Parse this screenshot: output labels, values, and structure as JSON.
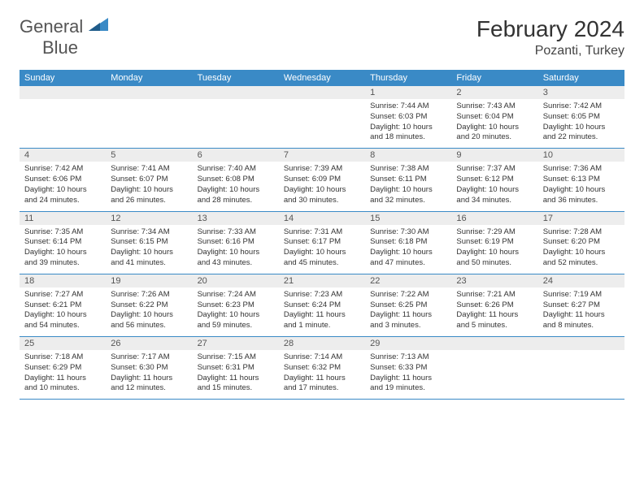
{
  "logo": {
    "word1": "General",
    "word2": "Blue"
  },
  "title": "February 2024",
  "location": "Pozanti, Turkey",
  "colors": {
    "header_bg": "#3a8ac6",
    "header_text": "#ffffff",
    "daynum_bg": "#ededed",
    "border": "#3a8ac6",
    "text": "#333333",
    "logo_gray": "#555555",
    "logo_blue": "#3a8ac6"
  },
  "day_names": [
    "Sunday",
    "Monday",
    "Tuesday",
    "Wednesday",
    "Thursday",
    "Friday",
    "Saturday"
  ],
  "weeks": [
    [
      {
        "num": "",
        "sunrise": "",
        "sunset": "",
        "daylight": ""
      },
      {
        "num": "",
        "sunrise": "",
        "sunset": "",
        "daylight": ""
      },
      {
        "num": "",
        "sunrise": "",
        "sunset": "",
        "daylight": ""
      },
      {
        "num": "",
        "sunrise": "",
        "sunset": "",
        "daylight": ""
      },
      {
        "num": "1",
        "sunrise": "Sunrise: 7:44 AM",
        "sunset": "Sunset: 6:03 PM",
        "daylight": "Daylight: 10 hours and 18 minutes."
      },
      {
        "num": "2",
        "sunrise": "Sunrise: 7:43 AM",
        "sunset": "Sunset: 6:04 PM",
        "daylight": "Daylight: 10 hours and 20 minutes."
      },
      {
        "num": "3",
        "sunrise": "Sunrise: 7:42 AM",
        "sunset": "Sunset: 6:05 PM",
        "daylight": "Daylight: 10 hours and 22 minutes."
      }
    ],
    [
      {
        "num": "4",
        "sunrise": "Sunrise: 7:42 AM",
        "sunset": "Sunset: 6:06 PM",
        "daylight": "Daylight: 10 hours and 24 minutes."
      },
      {
        "num": "5",
        "sunrise": "Sunrise: 7:41 AM",
        "sunset": "Sunset: 6:07 PM",
        "daylight": "Daylight: 10 hours and 26 minutes."
      },
      {
        "num": "6",
        "sunrise": "Sunrise: 7:40 AM",
        "sunset": "Sunset: 6:08 PM",
        "daylight": "Daylight: 10 hours and 28 minutes."
      },
      {
        "num": "7",
        "sunrise": "Sunrise: 7:39 AM",
        "sunset": "Sunset: 6:09 PM",
        "daylight": "Daylight: 10 hours and 30 minutes."
      },
      {
        "num": "8",
        "sunrise": "Sunrise: 7:38 AM",
        "sunset": "Sunset: 6:11 PM",
        "daylight": "Daylight: 10 hours and 32 minutes."
      },
      {
        "num": "9",
        "sunrise": "Sunrise: 7:37 AM",
        "sunset": "Sunset: 6:12 PM",
        "daylight": "Daylight: 10 hours and 34 minutes."
      },
      {
        "num": "10",
        "sunrise": "Sunrise: 7:36 AM",
        "sunset": "Sunset: 6:13 PM",
        "daylight": "Daylight: 10 hours and 36 minutes."
      }
    ],
    [
      {
        "num": "11",
        "sunrise": "Sunrise: 7:35 AM",
        "sunset": "Sunset: 6:14 PM",
        "daylight": "Daylight: 10 hours and 39 minutes."
      },
      {
        "num": "12",
        "sunrise": "Sunrise: 7:34 AM",
        "sunset": "Sunset: 6:15 PM",
        "daylight": "Daylight: 10 hours and 41 minutes."
      },
      {
        "num": "13",
        "sunrise": "Sunrise: 7:33 AM",
        "sunset": "Sunset: 6:16 PM",
        "daylight": "Daylight: 10 hours and 43 minutes."
      },
      {
        "num": "14",
        "sunrise": "Sunrise: 7:31 AM",
        "sunset": "Sunset: 6:17 PM",
        "daylight": "Daylight: 10 hours and 45 minutes."
      },
      {
        "num": "15",
        "sunrise": "Sunrise: 7:30 AM",
        "sunset": "Sunset: 6:18 PM",
        "daylight": "Daylight: 10 hours and 47 minutes."
      },
      {
        "num": "16",
        "sunrise": "Sunrise: 7:29 AM",
        "sunset": "Sunset: 6:19 PM",
        "daylight": "Daylight: 10 hours and 50 minutes."
      },
      {
        "num": "17",
        "sunrise": "Sunrise: 7:28 AM",
        "sunset": "Sunset: 6:20 PM",
        "daylight": "Daylight: 10 hours and 52 minutes."
      }
    ],
    [
      {
        "num": "18",
        "sunrise": "Sunrise: 7:27 AM",
        "sunset": "Sunset: 6:21 PM",
        "daylight": "Daylight: 10 hours and 54 minutes."
      },
      {
        "num": "19",
        "sunrise": "Sunrise: 7:26 AM",
        "sunset": "Sunset: 6:22 PM",
        "daylight": "Daylight: 10 hours and 56 minutes."
      },
      {
        "num": "20",
        "sunrise": "Sunrise: 7:24 AM",
        "sunset": "Sunset: 6:23 PM",
        "daylight": "Daylight: 10 hours and 59 minutes."
      },
      {
        "num": "21",
        "sunrise": "Sunrise: 7:23 AM",
        "sunset": "Sunset: 6:24 PM",
        "daylight": "Daylight: 11 hours and 1 minute."
      },
      {
        "num": "22",
        "sunrise": "Sunrise: 7:22 AM",
        "sunset": "Sunset: 6:25 PM",
        "daylight": "Daylight: 11 hours and 3 minutes."
      },
      {
        "num": "23",
        "sunrise": "Sunrise: 7:21 AM",
        "sunset": "Sunset: 6:26 PM",
        "daylight": "Daylight: 11 hours and 5 minutes."
      },
      {
        "num": "24",
        "sunrise": "Sunrise: 7:19 AM",
        "sunset": "Sunset: 6:27 PM",
        "daylight": "Daylight: 11 hours and 8 minutes."
      }
    ],
    [
      {
        "num": "25",
        "sunrise": "Sunrise: 7:18 AM",
        "sunset": "Sunset: 6:29 PM",
        "daylight": "Daylight: 11 hours and 10 minutes."
      },
      {
        "num": "26",
        "sunrise": "Sunrise: 7:17 AM",
        "sunset": "Sunset: 6:30 PM",
        "daylight": "Daylight: 11 hours and 12 minutes."
      },
      {
        "num": "27",
        "sunrise": "Sunrise: 7:15 AM",
        "sunset": "Sunset: 6:31 PM",
        "daylight": "Daylight: 11 hours and 15 minutes."
      },
      {
        "num": "28",
        "sunrise": "Sunrise: 7:14 AM",
        "sunset": "Sunset: 6:32 PM",
        "daylight": "Daylight: 11 hours and 17 minutes."
      },
      {
        "num": "29",
        "sunrise": "Sunrise: 7:13 AM",
        "sunset": "Sunset: 6:33 PM",
        "daylight": "Daylight: 11 hours and 19 minutes."
      },
      {
        "num": "",
        "sunrise": "",
        "sunset": "",
        "daylight": ""
      },
      {
        "num": "",
        "sunrise": "",
        "sunset": "",
        "daylight": ""
      }
    ]
  ]
}
